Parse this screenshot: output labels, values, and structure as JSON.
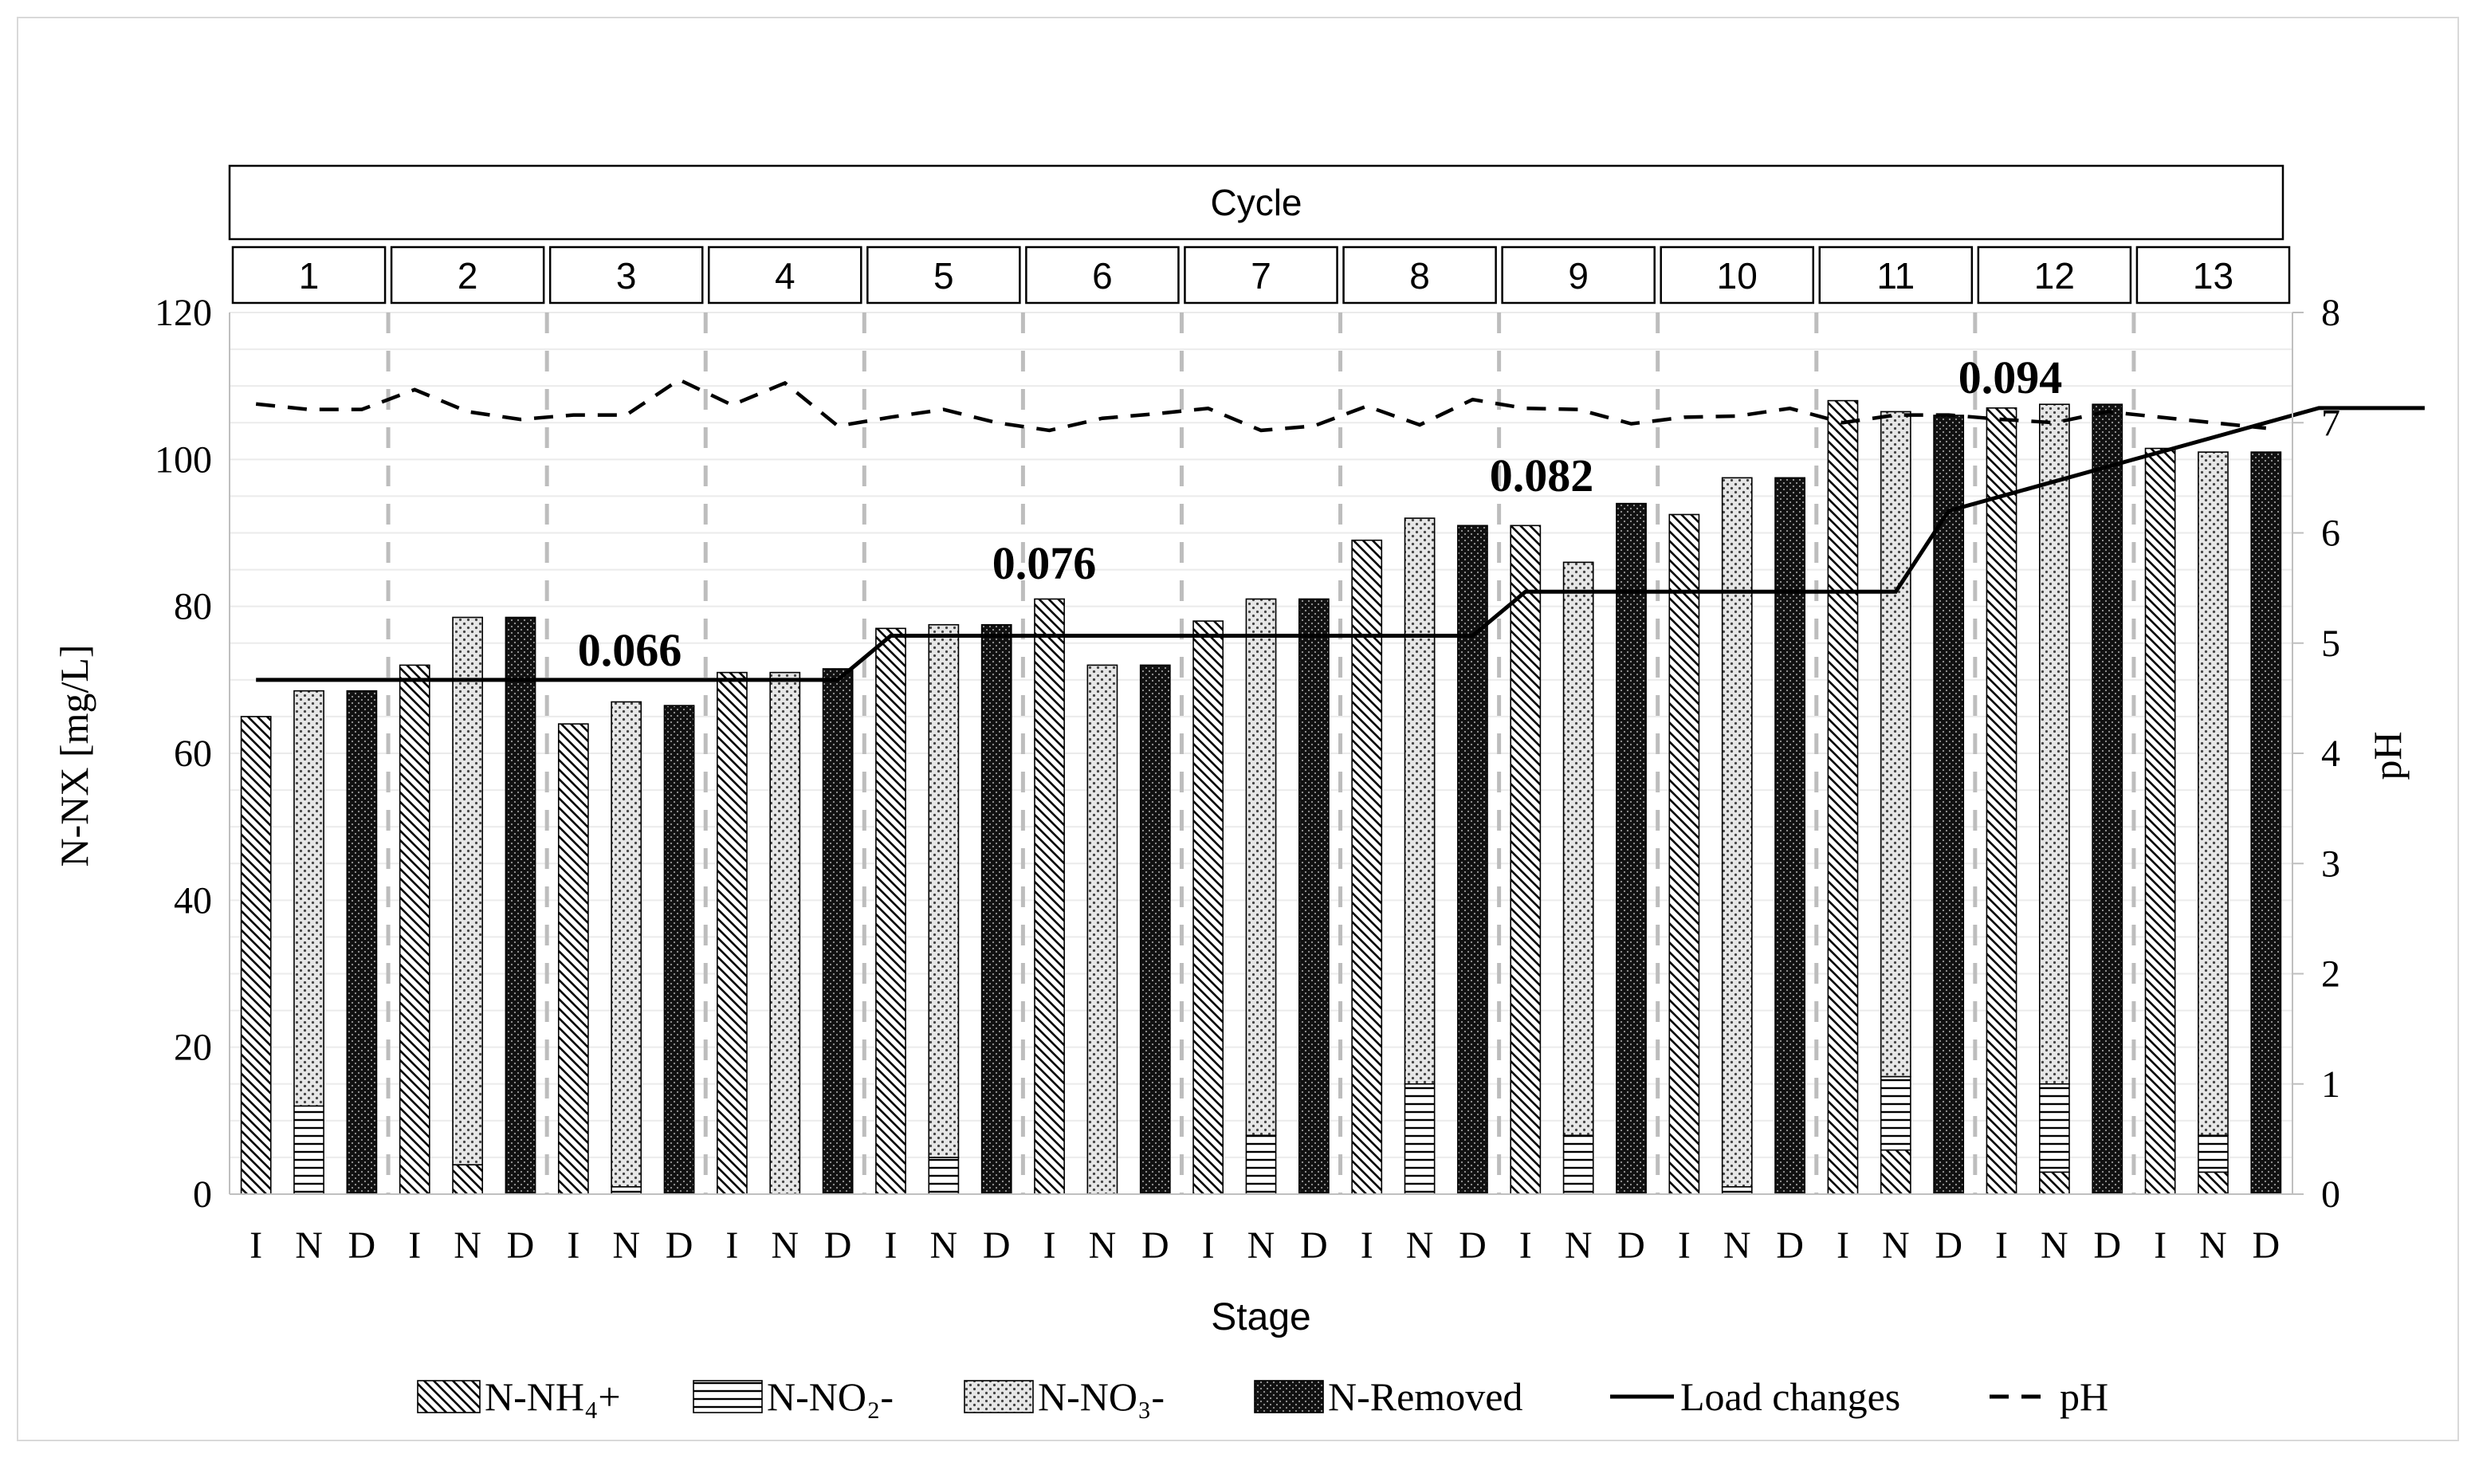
{
  "chart_data": {
    "type": "bar",
    "title": "",
    "group_header": "Cycle",
    "cycles": [
      "1",
      "2",
      "3",
      "4",
      "5",
      "6",
      "7",
      "8",
      "9",
      "10",
      "11",
      "12",
      "13"
    ],
    "stages": [
      "I",
      "N",
      "D"
    ],
    "xlabel": "Stage",
    "ylabel": "N-NX [mg/L]",
    "y2label": "pH",
    "ylim": [
      0,
      120
    ],
    "y2lim": [
      0,
      8
    ],
    "yticks": [
      "0",
      "20",
      "40",
      "60",
      "80",
      "100",
      "120"
    ],
    "y2ticks": [
      "0",
      "1",
      "2",
      "3",
      "4",
      "5",
      "6",
      "7",
      "8"
    ],
    "grid": true,
    "legend_position": "bottom",
    "stacked_series": [
      {
        "name": "N-NH₄+",
        "pattern": "diagonal-hatch",
        "values": [
          [
            65,
            0,
            0
          ],
          [
            72,
            4,
            0
          ],
          [
            64,
            0,
            0
          ],
          [
            71,
            0,
            0
          ],
          [
            77,
            0,
            0
          ],
          [
            81,
            0,
            0
          ],
          [
            78,
            0,
            0
          ],
          [
            89,
            0,
            0
          ],
          [
            91,
            0,
            0
          ],
          [
            92.5,
            0,
            0
          ],
          [
            108,
            6,
            0
          ],
          [
            107,
            3,
            0
          ],
          [
            101.5,
            3,
            0
          ]
        ]
      },
      {
        "name": "N-NO₂-",
        "pattern": "horizontal-lines",
        "values": [
          [
            0,
            12,
            0
          ],
          [
            0,
            0,
            0
          ],
          [
            0,
            1,
            0
          ],
          [
            0,
            0,
            0
          ],
          [
            0,
            5,
            0
          ],
          [
            0,
            0,
            0
          ],
          [
            0,
            8,
            0
          ],
          [
            0,
            15,
            0
          ],
          [
            0,
            8,
            0
          ],
          [
            0,
            1,
            0
          ],
          [
            0,
            10,
            0
          ],
          [
            0,
            12,
            0
          ],
          [
            0,
            5,
            0
          ]
        ]
      },
      {
        "name": "N-NO₃-",
        "pattern": "dotted",
        "values": [
          [
            0,
            56.5,
            0
          ],
          [
            0,
            74.5,
            0
          ],
          [
            0,
            66,
            0
          ],
          [
            0,
            71,
            0
          ],
          [
            0,
            72.5,
            0
          ],
          [
            0,
            72,
            0
          ],
          [
            0,
            73,
            0
          ],
          [
            0,
            77,
            0
          ],
          [
            0,
            78,
            0
          ],
          [
            0,
            96.5,
            0
          ],
          [
            0,
            90.5,
            0
          ],
          [
            0,
            92.5,
            0
          ],
          [
            0,
            93,
            0
          ]
        ]
      },
      {
        "name": "N-Removed",
        "pattern": "dark-dotted",
        "values": [
          [
            0,
            0,
            68.5
          ],
          [
            0,
            0,
            78.5
          ],
          [
            0,
            0,
            66.5
          ],
          [
            0,
            0,
            71.5
          ],
          [
            0,
            0,
            77.5
          ],
          [
            0,
            0,
            72
          ],
          [
            0,
            0,
            81
          ],
          [
            0,
            0,
            91
          ],
          [
            0,
            0,
            94
          ],
          [
            0,
            0,
            97.5
          ],
          [
            0,
            0,
            106
          ],
          [
            0,
            0,
            107.5
          ],
          [
            0,
            0,
            101
          ]
        ]
      }
    ],
    "line_series": [
      {
        "name": "Load changes",
        "axis": "left",
        "style": "solid",
        "points": [
          [
            0,
            70
          ],
          [
            11,
            70
          ],
          [
            12,
            76
          ],
          [
            23,
            76
          ],
          [
            24,
            82
          ],
          [
            31,
            82
          ],
          [
            32,
            93
          ],
          [
            39,
            107
          ],
          [
            41,
            107
          ]
        ]
      },
      {
        "name": "pH",
        "axis": "right",
        "style": "dashed",
        "values": [
          7.17,
          7.12,
          7.12,
          7.3,
          7.1,
          7.03,
          7.07,
          7.07,
          7.39,
          7.16,
          7.36,
          6.97,
          7.05,
          7.12,
          7.0,
          6.93,
          7.04,
          7.08,
          7.13,
          6.93,
          6.97,
          7.15,
          6.98,
          7.21,
          7.13,
          7.12,
          6.99,
          7.05,
          7.06,
          7.13,
          7.0,
          7.07,
          7.07,
          7.03,
          7.0,
          7.1,
          7.05,
          7.0,
          6.95
        ]
      }
    ],
    "annotations": [
      "0.066",
      "0.076",
      "0.082",
      "0.094"
    ],
    "legend": [
      "N-NH₄+",
      "N-NO₂-",
      "N-NO₃-",
      "N-Removed",
      "Load changes",
      "pH"
    ]
  }
}
